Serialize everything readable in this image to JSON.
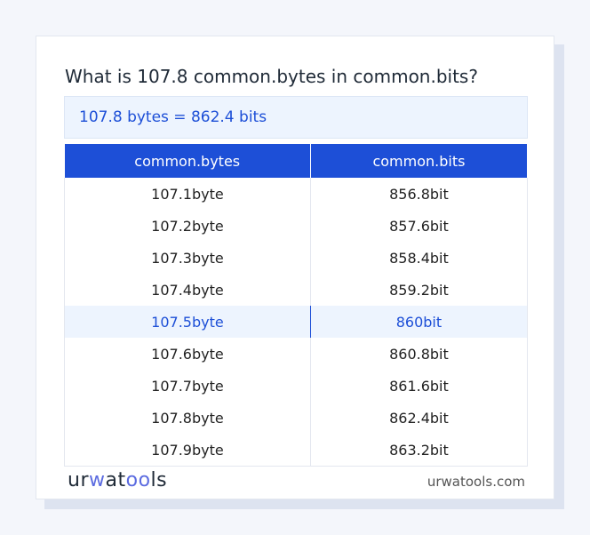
{
  "question": "What is 107.8 common.bytes in common.bits?",
  "answer": "107.8 bytes = 862.4 bits",
  "table": {
    "headers": [
      "common.bytes",
      "common.bits"
    ],
    "rows": [
      [
        "107.1byte",
        "856.8bit"
      ],
      [
        "107.2byte",
        "857.6bit"
      ],
      [
        "107.3byte",
        "858.4bit"
      ],
      [
        "107.4byte",
        "859.2bit"
      ],
      [
        "107.5byte",
        "860bit"
      ],
      [
        "107.6byte",
        "860.8bit"
      ],
      [
        "107.7byte",
        "861.6bit"
      ],
      [
        "107.8byte",
        "862.4bit"
      ],
      [
        "107.9byte",
        "863.2bit"
      ]
    ],
    "highlighted_row": 4
  },
  "footer": {
    "logo": "urwatools",
    "site": "urwatools.com"
  },
  "colors": {
    "accent": "#1d4fd7",
    "highlight_bg": "#edf4fe"
  }
}
